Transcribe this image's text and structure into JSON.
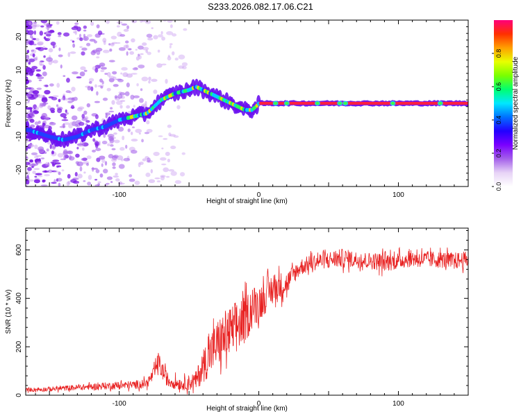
{
  "title": "S233.2026.082.17.06.C21",
  "chart_data": [
    {
      "type": "heatmap",
      "xlabel": "Height of straight line (km)",
      "ylabel": "Frequency (Hz)",
      "xlim": [
        -167,
        150
      ],
      "ylim": [
        -25,
        25
      ],
      "xticks": [
        -100,
        0,
        100
      ],
      "yticks": [
        -20,
        -10,
        0,
        10,
        20
      ],
      "grid": false,
      "ridge": {
        "x": [
          -165,
          -150,
          -140,
          -130,
          -120,
          -110,
          -100,
          -90,
          -80,
          -75,
          -70,
          -60,
          -50,
          -45,
          -40,
          -35,
          -30,
          -25,
          -20,
          -15,
          -10,
          -5,
          -2,
          0,
          150
        ],
        "y": [
          -8,
          -10,
          -11,
          -10,
          -8,
          -7,
          -5,
          -4,
          -3,
          -1,
          1,
          3,
          4,
          5,
          4,
          3,
          2,
          1,
          0,
          -1,
          -2,
          -2,
          -1,
          0,
          0
        ]
      },
      "colorbar": {
        "label": "Normalized spectral amplitude",
        "ticks": [
          "0.0",
          "0.2",
          "0.4",
          "0.6",
          "0.8"
        ],
        "colors": [
          "#ffffff",
          "#e7d3f6",
          "#a460ea",
          "#7a00ff",
          "#2200ff",
          "#0070ff",
          "#00e8ff",
          "#00ff70",
          "#7aff00",
          "#e8ff00",
          "#ffa000",
          "#ff3000",
          "#ff007a"
        ]
      },
      "colors": {
        "background": "#ffffff",
        "faint": "#c89af0",
        "noise": "#7a18e6"
      }
    },
    {
      "type": "line",
      "xlabel": "Height of straight line (km)",
      "ylabel": "SNR (10 * v/v)",
      "xlim": [
        -167,
        150
      ],
      "ylim": [
        0,
        690
      ],
      "xticks": [
        -100,
        0,
        100
      ],
      "yticks": [
        0,
        200,
        400,
        600
      ],
      "grid": false,
      "series": [
        {
          "name": "SNR",
          "color": "#e82020",
          "x": [
            -167,
            -150,
            -130,
            -110,
            -90,
            -80,
            -75,
            -72,
            -70,
            -65,
            -55,
            -45,
            -40,
            -35,
            -30,
            -25,
            -20,
            -15,
            -10,
            -5,
            0,
            5,
            10,
            15,
            20,
            25,
            30,
            40,
            50,
            60,
            70,
            80,
            90,
            100,
            110,
            120,
            130,
            140,
            150
          ],
          "mean": [
            22,
            25,
            32,
            38,
            42,
            50,
            90,
            140,
            110,
            60,
            45,
            60,
            120,
            170,
            210,
            240,
            260,
            290,
            310,
            360,
            380,
            410,
            440,
            450,
            460,
            500,
            530,
            550,
            560,
            565,
            560,
            555,
            550,
            555,
            565,
            560,
            560,
            555,
            560
          ],
          "spread": [
            8,
            10,
            12,
            15,
            18,
            20,
            30,
            40,
            40,
            30,
            25,
            40,
            70,
            90,
            100,
            110,
            110,
            110,
            100,
            90,
            80,
            70,
            70,
            60,
            50,
            40,
            35,
            35,
            35,
            40,
            35,
            35,
            40,
            35,
            35,
            35,
            35,
            35,
            35
          ]
        }
      ]
    }
  ]
}
